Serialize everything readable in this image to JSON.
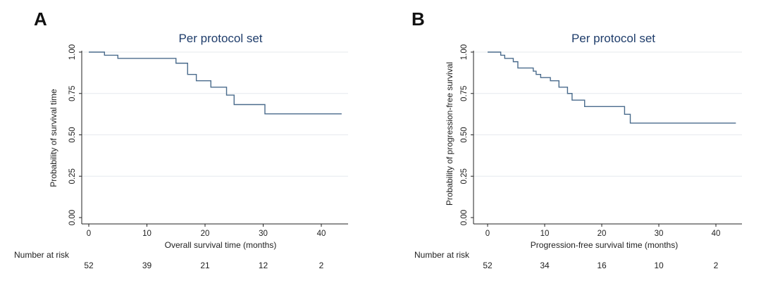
{
  "chart_data": [
    {
      "type": "line",
      "panel_letter": "A",
      "title": "Per protocol set",
      "xlabel": "Overall survival time (months)",
      "ylabel": "Probability of survival time",
      "xlim": [
        0,
        44
      ],
      "ylim": [
        0,
        1
      ],
      "x_ticks": [
        0,
        10,
        20,
        30,
        40
      ],
      "y_ticks": [
        "0.00",
        "0.25",
        "0.50",
        "0.75",
        "1.00"
      ],
      "grid": true,
      "series": [
        {
          "color": "#4a6b8c",
          "x": [
            0,
            2.7,
            5,
            15,
            17,
            18.5,
            21,
            23.7,
            25,
            30.3,
            43.5
          ],
          "y": [
            1.0,
            0.981,
            0.962,
            0.933,
            0.865,
            0.827,
            0.788,
            0.74,
            0.683,
            0.627,
            0.627
          ]
        }
      ],
      "risk_table": {
        "label": "Number at risk",
        "values": [
          "52",
          "39",
          "21",
          "12",
          "2"
        ],
        "at_x": [
          0,
          10,
          20,
          30,
          40
        ]
      }
    },
    {
      "type": "line",
      "panel_letter": "B",
      "title": "Per protocol set",
      "xlabel": "Progression-free survival time (months)",
      "ylabel": "Probability of progression-free survival",
      "xlim": [
        0,
        44
      ],
      "ylim": [
        0,
        1
      ],
      "x_ticks": [
        0,
        10,
        20,
        30,
        40
      ],
      "y_ticks": [
        "0.00",
        "0.25",
        "0.50",
        "0.75",
        "1.00"
      ],
      "grid": true,
      "series": [
        {
          "color": "#4a6b8c",
          "x": [
            0,
            2.3,
            3,
            4.5,
            5.3,
            8,
            8.5,
            9.3,
            11,
            12.5,
            14,
            14.8,
            17,
            24,
            25,
            43.5
          ],
          "y": [
            1.0,
            0.981,
            0.962,
            0.942,
            0.904,
            0.885,
            0.865,
            0.846,
            0.827,
            0.788,
            0.75,
            0.71,
            0.671,
            0.624,
            0.571,
            0.571
          ]
        }
      ],
      "risk_table": {
        "label": "Number at risk",
        "values": [
          "52",
          "34",
          "16",
          "10",
          "2"
        ],
        "at_x": [
          0,
          10,
          20,
          30,
          40
        ]
      }
    }
  ]
}
